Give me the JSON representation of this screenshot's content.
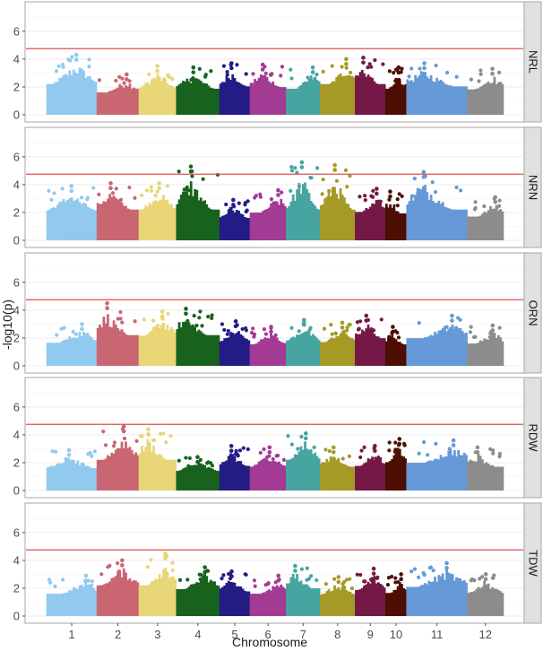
{
  "chart_data": {
    "type": "scatter",
    "subtype": "manhattan",
    "title": "",
    "xlabel": "Chromosome",
    "ylabel": "-log10(p)",
    "ylim": [
      0,
      7.6
    ],
    "yticks": [
      0,
      2,
      4,
      6
    ],
    "threshold": 4.75,
    "threshold_color": "#d9534f",
    "grid": true,
    "legend": "none",
    "chromosomes": [
      {
        "label": "1",
        "color": "#92c9ef",
        "size": 43
      },
      {
        "label": "2",
        "color": "#c96672",
        "size": 36
      },
      {
        "label": "3",
        "color": "#e8d677",
        "size": 32
      },
      {
        "label": "4",
        "color": "#18621f",
        "size": 37
      },
      {
        "label": "5",
        "color": "#241c85",
        "size": 26
      },
      {
        "label": "6",
        "color": "#a33a94",
        "size": 31
      },
      {
        "label": "7",
        "color": "#46a5a0",
        "size": 29
      },
      {
        "label": "8",
        "color": "#a69a26",
        "size": 30
      },
      {
        "label": "9",
        "color": "#741947",
        "size": 26
      },
      {
        "label": "10",
        "color": "#4d0e03",
        "size": 18
      },
      {
        "label": "11",
        "color": "#6699d7",
        "size": 52
      },
      {
        "label": "12",
        "color": "#8c8c8c",
        "size": 31
      }
    ],
    "panels": [
      {
        "name": "NRL",
        "peaks": [
          4.3,
          2.9,
          3.5,
          3.4,
          3.7,
          3.6,
          3.4,
          4.0,
          4.1,
          3.4,
          3.7,
          3.3
        ]
      },
      {
        "name": "NRN",
        "peaks": [
          3.9,
          4.1,
          4.1,
          5.3,
          2.9,
          3.6,
          5.6,
          5.4,
          3.7,
          3.5,
          4.9,
          3.1
        ]
      },
      {
        "name": "ORN",
        "peaks": [
          3.0,
          4.5,
          3.9,
          4.1,
          3.2,
          2.8,
          3.3,
          3.1,
          3.6,
          2.8,
          3.6,
          2.9
        ]
      },
      {
        "name": "RDW",
        "peaks": [
          2.9,
          4.6,
          4.4,
          2.4,
          3.2,
          3.1,
          4.1,
          3.1,
          3.2,
          3.7,
          3.6,
          3.1
        ]
      },
      {
        "name": "TDW",
        "peaks": [
          2.9,
          4.0,
          4.5,
          3.5,
          3.2,
          2.9,
          3.6,
          2.8,
          3.4,
          3.0,
          3.8,
          3.0
        ]
      }
    ]
  }
}
